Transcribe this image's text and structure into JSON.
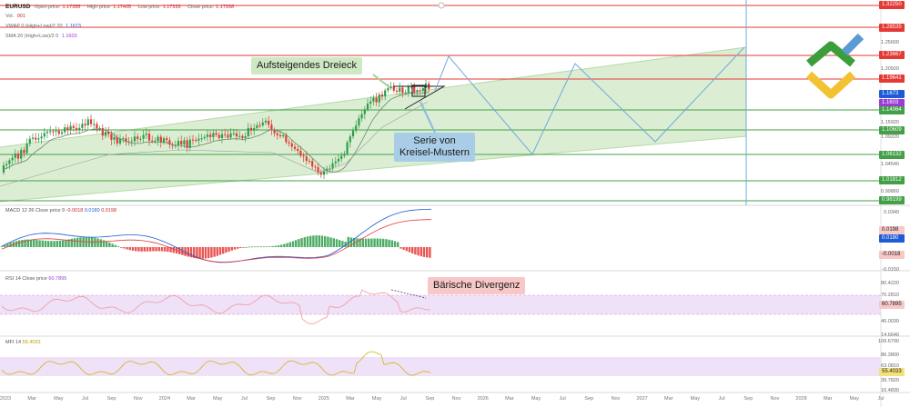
{
  "header": {
    "symbol": "EURUSD",
    "open_label": "Open price:",
    "open_value": "1.17395",
    "high_label": "High price:",
    "high_value": "1.17405",
    "low_label": "Low price:",
    "low_value": "1.17333",
    "close_label": "Close price:",
    "close_value": "1.17338",
    "vol_label": "Vol.",
    "vol_value": "901",
    "vwap_label": "VWAP 0 (High+Low)/2 20",
    "vwap_value": "1.1673",
    "sma_label": "SMA 20 (High+Low)/2 0",
    "sma_value": "1.1603"
  },
  "price_axis": {
    "ticks": [
      "1.25600",
      "1.20920",
      "1.15920",
      "1.09220",
      "1.04540",
      "0.99860"
    ],
    "red_levels": [
      "1.32250",
      "1.28535",
      "1.23667",
      "1.19641"
    ],
    "green_levels": [
      "1.14064",
      "1.10609",
      "1.06132",
      "1.01812",
      "0.98199"
    ],
    "vwap_tag": "1.1673",
    "sma_tag": "1.1603"
  },
  "macd": {
    "label": "MACD 12 26 Close price 9",
    "v1": "-0.0018",
    "v2": "0.0180",
    "v3": "0.0198",
    "ticks": [
      "0.0340",
      "-0.0150"
    ],
    "tags": [
      "0.0198",
      "0.0180",
      "-0.0018"
    ]
  },
  "rsi": {
    "label": "RSI 14 Close price",
    "value": "60.7895",
    "ticks": [
      "80.4220",
      "70.2810",
      "40.0030",
      "14.6640"
    ],
    "tag": "60.7895"
  },
  "mfi": {
    "label": "MFI 14",
    "value": "55.4033",
    "ticks": [
      "109.6790",
      "86.3800",
      "63.0810",
      "39.7820",
      "16.4830"
    ],
    "tag": "55.4033"
  },
  "annotations": {
    "triangle": "Aufsteigendes Dreieck",
    "serie_line1": "Serie von",
    "serie_line2": "Kreisel-Mustern",
    "divergence": "Bärische Divergenz"
  },
  "time_axis": [
    "2023",
    "Mar",
    "May",
    "Jul",
    "Sep",
    "Nov",
    "2024",
    "Mar",
    "May",
    "Jul",
    "Sep",
    "Nov",
    "2025",
    "Mar",
    "May",
    "Jul",
    "Sep",
    "Nov",
    "2026",
    "Mar",
    "May",
    "Jul",
    "Sep",
    "Nov",
    "2027",
    "Mar",
    "May",
    "Jul",
    "Sep",
    "Nov",
    "2028",
    "Mar",
    "May",
    "Jul"
  ],
  "colors": {
    "resistance": "#e53935",
    "support": "#43a047",
    "channel": "#cfe8c4",
    "bull": "#2e9d4a",
    "bear": "#e53935",
    "forecast": "#6fa8dc",
    "rsi_band": "#efe1f7",
    "logo_green": "#3b9e3a",
    "logo_yellow": "#f2c233",
    "logo_blue": "#5b9bd5"
  }
}
